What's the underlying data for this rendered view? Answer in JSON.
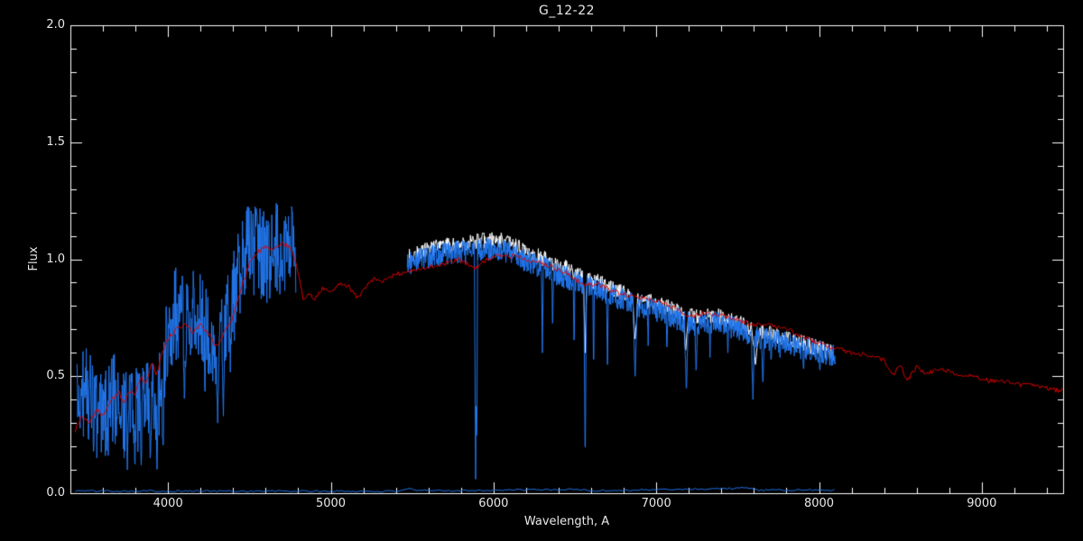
{
  "title": "G_12-22",
  "chart_data": {
    "type": "line",
    "title": "G_12-22",
    "xlabel": "Wavelength, A",
    "ylabel": "Flux",
    "xlim": [
      3400,
      9500
    ],
    "ylim": [
      0.0,
      2.0
    ],
    "background": "#000000",
    "axis_color": "#ffffff",
    "text_color": "#e8e8e8",
    "grid": false,
    "legend": false,
    "xticks": {
      "major": [
        4000,
        5000,
        6000,
        7000,
        8000,
        9000
      ],
      "labels": [
        "4000",
        "5000",
        "6000",
        "7000",
        "8000",
        "9000"
      ],
      "minor_step": 200
    },
    "yticks": {
      "major": [
        0.0,
        0.5,
        1.0,
        1.5,
        2.0
      ],
      "labels": [
        "0.0",
        "0.5",
        "1.0",
        "1.5",
        "2.0"
      ],
      "minor_step": 0.1
    },
    "series": [
      {
        "name": "error-spectrum-blue",
        "color": "#2277ee",
        "width": 1,
        "seed": 101,
        "step": 15,
        "noise": 0.004,
        "range": [
          3430,
          8100
        ],
        "anchors": [
          [
            3430,
            0.01
          ],
          [
            5400,
            0.008
          ],
          [
            5470,
            0.02
          ],
          [
            5520,
            0.01
          ],
          [
            6540,
            0.016
          ],
          [
            6580,
            0.01
          ],
          [
            7580,
            0.022
          ],
          [
            7640,
            0.012
          ],
          [
            8100,
            0.014
          ]
        ]
      },
      {
        "name": "observed-white",
        "color": "#ffffff",
        "width": 1,
        "seed": 202,
        "step": 3,
        "noise": 0.035,
        "range": [
          5480,
          8090
        ],
        "anchors": [
          [
            5480,
            1.01
          ],
          [
            5550,
            1.03
          ],
          [
            5650,
            1.05
          ],
          [
            5750,
            1.06
          ],
          [
            5850,
            1.07
          ],
          [
            5950,
            1.08
          ],
          [
            6050,
            1.08
          ],
          [
            6150,
            1.05
          ],
          [
            6250,
            1.02
          ],
          [
            6350,
            0.99
          ],
          [
            6450,
            0.96
          ],
          [
            6550,
            0.92
          ],
          [
            6650,
            0.9
          ],
          [
            6750,
            0.87
          ],
          [
            6850,
            0.84
          ],
          [
            6950,
            0.82
          ],
          [
            7050,
            0.8
          ],
          [
            7150,
            0.77
          ],
          [
            7250,
            0.76
          ],
          [
            7350,
            0.76
          ],
          [
            7450,
            0.74
          ],
          [
            7550,
            0.72
          ],
          [
            7600,
            0.69
          ],
          [
            7700,
            0.68
          ],
          [
            7800,
            0.66
          ],
          [
            7900,
            0.64
          ],
          [
            8000,
            0.62
          ],
          [
            8090,
            0.6
          ]
        ],
        "spikes": [
          [
            6563,
            0.6,
            20
          ],
          [
            6870,
            0.65,
            35
          ],
          [
            7180,
            0.6,
            30
          ],
          [
            7610,
            0.55,
            40
          ]
        ]
      },
      {
        "name": "observed-blue-uv-segment",
        "color": "#2277ee",
        "width": 1,
        "seed": 303,
        "step": 2.5,
        "noise": 0.2,
        "range": [
          3440,
          4785
        ],
        "anchors": [
          [
            3440,
            0.38
          ],
          [
            3490,
            0.45
          ],
          [
            3530,
            0.38
          ],
          [
            3570,
            0.3
          ],
          [
            3610,
            0.33
          ],
          [
            3650,
            0.38
          ],
          [
            3690,
            0.42
          ],
          [
            3730,
            0.33
          ],
          [
            3770,
            0.4
          ],
          [
            3810,
            0.38
          ],
          [
            3850,
            0.33
          ],
          [
            3890,
            0.4
          ],
          [
            3930,
            0.35
          ],
          [
            3970,
            0.55
          ],
          [
            4010,
            0.72
          ],
          [
            4060,
            0.78
          ],
          [
            4110,
            0.72
          ],
          [
            4160,
            0.77
          ],
          [
            4210,
            0.74
          ],
          [
            4260,
            0.7
          ],
          [
            4310,
            0.62
          ],
          [
            4360,
            0.72
          ],
          [
            4410,
            0.85
          ],
          [
            4460,
            1.0
          ],
          [
            4510,
            1.05
          ],
          [
            4560,
            1.03
          ],
          [
            4610,
            1.0
          ],
          [
            4660,
            1.04
          ],
          [
            4710,
            1.05
          ],
          [
            4785,
            1.03
          ]
        ],
        "spikes": [
          [
            3750,
            0.1,
            14
          ],
          [
            3797,
            0.1,
            14
          ],
          [
            3835,
            0.12,
            14
          ],
          [
            3890,
            0.15,
            14
          ],
          [
            3933,
            0.08,
            16
          ],
          [
            3969,
            0.12,
            14
          ],
          [
            4101,
            0.35,
            16
          ],
          [
            4227,
            0.4,
            12
          ],
          [
            4305,
            0.3,
            22
          ],
          [
            4340,
            0.33,
            16
          ],
          [
            4383,
            0.5,
            10
          ]
        ]
      },
      {
        "name": "observed-blue-red-segment",
        "color": "#2277ee",
        "width": 1,
        "seed": 404,
        "step": 2,
        "noise": 0.05,
        "range": [
          5470,
          8100
        ],
        "anchors": [
          [
            5470,
            0.98
          ],
          [
            5550,
            1.0
          ],
          [
            5650,
            1.02
          ],
          [
            5750,
            1.03
          ],
          [
            5850,
            1.03
          ],
          [
            5950,
            1.04
          ],
          [
            6050,
            1.04
          ],
          [
            6150,
            1.01
          ],
          [
            6250,
            0.98
          ],
          [
            6350,
            0.95
          ],
          [
            6450,
            0.92
          ],
          [
            6550,
            0.89
          ],
          [
            6650,
            0.87
          ],
          [
            6750,
            0.84
          ],
          [
            6850,
            0.81
          ],
          [
            6950,
            0.79
          ],
          [
            7050,
            0.77
          ],
          [
            7150,
            0.74
          ],
          [
            7250,
            0.72
          ],
          [
            7350,
            0.73
          ],
          [
            7450,
            0.71
          ],
          [
            7550,
            0.69
          ],
          [
            7650,
            0.66
          ],
          [
            7750,
            0.65
          ],
          [
            7850,
            0.63
          ],
          [
            7950,
            0.61
          ],
          [
            8100,
            0.59
          ]
        ],
        "spikes": [
          [
            5890,
            0.06,
            16
          ],
          [
            5897,
            0.12,
            10
          ],
          [
            6300,
            0.6,
            12
          ],
          [
            6363,
            0.68,
            10
          ],
          [
            6495,
            0.6,
            10
          ],
          [
            6563,
            0.1,
            16
          ],
          [
            6615,
            0.5,
            10
          ],
          [
            6700,
            0.55,
            12
          ],
          [
            6870,
            0.5,
            28
          ],
          [
            6950,
            0.63,
            10
          ],
          [
            7065,
            0.6,
            10
          ],
          [
            7185,
            0.42,
            22
          ],
          [
            7245,
            0.5,
            14
          ],
          [
            7330,
            0.58,
            10
          ],
          [
            7440,
            0.6,
            10
          ],
          [
            7594,
            0.4,
            20
          ],
          [
            7655,
            0.45,
            16
          ],
          [
            7705,
            0.55,
            10
          ],
          [
            7760,
            0.58,
            10
          ],
          [
            7905,
            0.52,
            10
          ],
          [
            8005,
            0.52,
            10
          ]
        ]
      },
      {
        "name": "template-red",
        "color": "#dd0000",
        "width": 1,
        "seed": 505,
        "step": 8,
        "noise": 0.01,
        "range": [
          3430,
          9500
        ],
        "anchors": [
          [
            3430,
            0.27
          ],
          [
            3470,
            0.33
          ],
          [
            3520,
            0.3
          ],
          [
            3560,
            0.36
          ],
          [
            3600,
            0.33
          ],
          [
            3650,
            0.4
          ],
          [
            3700,
            0.43
          ],
          [
            3730,
            0.38
          ],
          [
            3760,
            0.44
          ],
          [
            3800,
            0.42
          ],
          [
            3830,
            0.5
          ],
          [
            3860,
            0.46
          ],
          [
            3900,
            0.56
          ],
          [
            3930,
            0.5
          ],
          [
            3960,
            0.6
          ],
          [
            4000,
            0.66
          ],
          [
            4050,
            0.7
          ],
          [
            4100,
            0.72
          ],
          [
            4150,
            0.69
          ],
          [
            4200,
            0.72
          ],
          [
            4250,
            0.68
          ],
          [
            4300,
            0.62
          ],
          [
            4340,
            0.68
          ],
          [
            4400,
            0.75
          ],
          [
            4450,
            0.88
          ],
          [
            4500,
            0.98
          ],
          [
            4550,
            1.03
          ],
          [
            4600,
            1.05
          ],
          [
            4650,
            1.04
          ],
          [
            4700,
            1.07
          ],
          [
            4750,
            1.05
          ],
          [
            4790,
            0.98
          ],
          [
            4830,
            0.83
          ],
          [
            4870,
            0.85
          ],
          [
            4900,
            0.83
          ],
          [
            4950,
            0.88
          ],
          [
            5000,
            0.86
          ],
          [
            5050,
            0.9
          ],
          [
            5100,
            0.89
          ],
          [
            5170,
            0.83
          ],
          [
            5220,
            0.89
          ],
          [
            5270,
            0.92
          ],
          [
            5320,
            0.9
          ],
          [
            5380,
            0.93
          ],
          [
            5430,
            0.94
          ],
          [
            5500,
            0.95
          ],
          [
            5560,
            0.96
          ],
          [
            5620,
            0.97
          ],
          [
            5700,
            0.98
          ],
          [
            5780,
            1.0
          ],
          [
            5890,
            0.96
          ],
          [
            5960,
            1.0
          ],
          [
            6050,
            1.02
          ],
          [
            6150,
            1.01
          ],
          [
            6250,
            0.99
          ],
          [
            6350,
            0.97
          ],
          [
            6450,
            0.94
          ],
          [
            6560,
            0.89
          ],
          [
            6650,
            0.89
          ],
          [
            6750,
            0.86
          ],
          [
            6850,
            0.84
          ],
          [
            6950,
            0.83
          ],
          [
            7050,
            0.81
          ],
          [
            7150,
            0.78
          ],
          [
            7200,
            0.75
          ],
          [
            7300,
            0.77
          ],
          [
            7400,
            0.76
          ],
          [
            7500,
            0.74
          ],
          [
            7600,
            0.72
          ],
          [
            7700,
            0.72
          ],
          [
            7800,
            0.7
          ],
          [
            7900,
            0.67
          ],
          [
            8000,
            0.64
          ],
          [
            8100,
            0.62
          ],
          [
            8200,
            0.6
          ],
          [
            8300,
            0.59
          ],
          [
            8400,
            0.57
          ],
          [
            8450,
            0.5
          ],
          [
            8500,
            0.55
          ],
          [
            8540,
            0.48
          ],
          [
            8600,
            0.54
          ],
          [
            8660,
            0.51
          ],
          [
            8750,
            0.53
          ],
          [
            8850,
            0.51
          ],
          [
            8950,
            0.5
          ],
          [
            9050,
            0.48
          ],
          [
            9150,
            0.48
          ],
          [
            9250,
            0.46
          ],
          [
            9350,
            0.46
          ],
          [
            9450,
            0.44
          ],
          [
            9500,
            0.44
          ]
        ]
      }
    ]
  }
}
